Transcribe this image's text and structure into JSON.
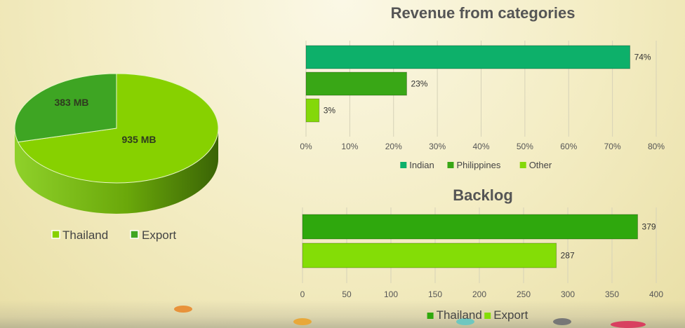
{
  "pie": {
    "slices": [
      {
        "name": "Thailand",
        "label": "935 MB",
        "value": 935,
        "color": "#87d100",
        "side_color": "#5c8f00"
      },
      {
        "name": "Export",
        "label": "383 MB",
        "value": 383,
        "color": "#3ea523",
        "side_color": "#2a7316"
      }
    ]
  },
  "chart_data": [
    {
      "type": "bar",
      "orientation": "horizontal",
      "title": "Revenue from categories",
      "categories": [
        "Indian",
        "Philippines",
        "Other"
      ],
      "values": [
        74,
        23,
        3
      ],
      "data_labels": [
        "74%",
        "23%",
        "3%"
      ],
      "colors": [
        "#0db06a",
        "#39a716",
        "#84d80a"
      ],
      "xlim": [
        0,
        80
      ],
      "ticks": [
        "0%",
        "10%",
        "20%",
        "30%",
        "40%",
        "50%",
        "60%",
        "70%",
        "80%"
      ],
      "tick_values": [
        0,
        10,
        20,
        30,
        40,
        50,
        60,
        70,
        80
      ],
      "legend": [
        "Indian",
        "Philippines",
        "Other"
      ],
      "legend_position": "bottom",
      "grid": true
    },
    {
      "type": "bar",
      "orientation": "horizontal",
      "title": "Backlog",
      "categories": [
        "Thailand",
        "Export"
      ],
      "values": [
        379,
        287
      ],
      "data_labels": [
        "379",
        "287"
      ],
      "colors": [
        "#2fa80d",
        "#84dd06"
      ],
      "xlim": [
        0,
        400
      ],
      "ticks": [
        "0",
        "50",
        "100",
        "150",
        "200",
        "250",
        "300",
        "350",
        "400"
      ],
      "tick_values": [
        0,
        50,
        100,
        150,
        200,
        250,
        300,
        350,
        400
      ],
      "legend": [
        "Thailand",
        "Export"
      ],
      "legend_position": "bottom",
      "grid": true
    }
  ]
}
